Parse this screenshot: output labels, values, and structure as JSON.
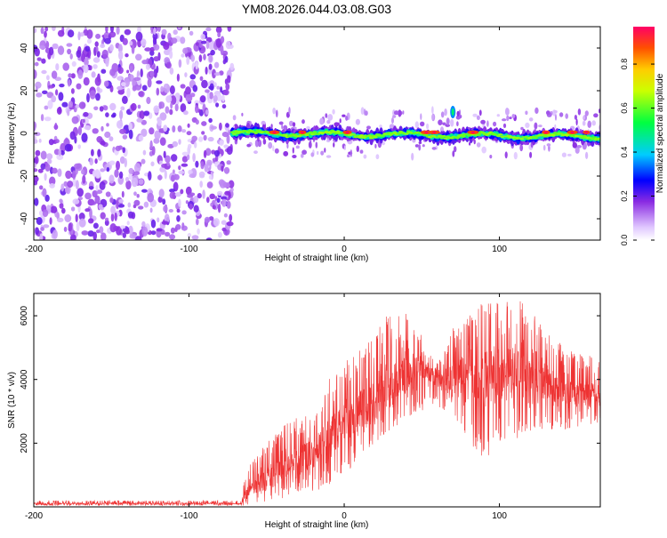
{
  "title": "YM08.2026.044.03.08.G03",
  "chart_data": [
    {
      "type": "heatmap",
      "title": "YM08.2026.044.03.08.G03",
      "xlabel": "Height of straight line (km)",
      "ylabel": "Frequency (Hz)",
      "xlim": [
        -200,
        165
      ],
      "ylim": [
        -50,
        50
      ],
      "xticks": [
        -200,
        -100,
        0,
        100
      ],
      "yticks": [
        -40,
        -20,
        0,
        20,
        40
      ],
      "colorbar": {
        "label": "Normalized spectral amplitude",
        "range": [
          0,
          0.97
        ],
        "ticks": [
          "0.0",
          "0.2",
          "0.4",
          "0.6",
          "0.8"
        ]
      },
      "regions": [
        {
          "name": "no-signal broadband noise",
          "x_range": [
            -200,
            -72
          ],
          "freq_range": [
            -50,
            50
          ],
          "amplitude": 0.18
        },
        {
          "name": "carrier band",
          "x_range": [
            -72,
            165
          ],
          "freq_center": 0,
          "freq_halfwidth": 3,
          "amplitude_range": [
            0.3,
            0.95
          ]
        },
        {
          "name": "carrier spur",
          "x": 70,
          "freq": 10,
          "amplitude": 0.35
        }
      ]
    },
    {
      "type": "line",
      "xlabel": "Height of straight line (km)",
      "ylabel": "SNR (10 * v/v)",
      "xlim": [
        -200,
        165
      ],
      "ylim": [
        0,
        6700
      ],
      "xticks": [
        -200,
        -100,
        0,
        100
      ],
      "yticks": [
        2000,
        4000,
        6000
      ],
      "series": [
        {
          "name": "SNR",
          "color": "#ee3333",
          "envelope": {
            "x": [
              -200,
              -66,
              -64,
              -55,
              -45,
              -35,
              -20,
              -10,
              0,
              10,
              20,
              30,
              40,
              50,
              60,
              70,
              80,
              90,
              100,
              110,
              120,
              130,
              140,
              150,
              165
            ],
            "mean": [
              100,
              100,
              400,
              700,
              1000,
              1300,
              1700,
              2200,
              2600,
              3000,
              3400,
              3800,
              4200,
              4400,
              4100,
              3900,
              4200,
              4000,
              4100,
              4200,
              3900,
              3800,
              3600,
              3500,
              3500
            ],
            "low": [
              40,
              40,
              50,
              100,
              250,
              300,
              450,
              700,
              1000,
              1500,
              2000,
              2400,
              2800,
              3000,
              3200,
              2600,
              2000,
              1500,
              1800,
              2000,
              2200,
              2300,
              2400,
              2500,
              2600
            ],
            "high": [
              200,
              200,
              1100,
              1700,
              2300,
              2700,
              3200,
              4000,
              4500,
              5000,
              5600,
              6300,
              6400,
              5400,
              4500,
              5600,
              6000,
              6500,
              6400,
              6700,
              6200,
              5500,
              5300,
              4800,
              4700
            ]
          }
        }
      ]
    }
  ]
}
